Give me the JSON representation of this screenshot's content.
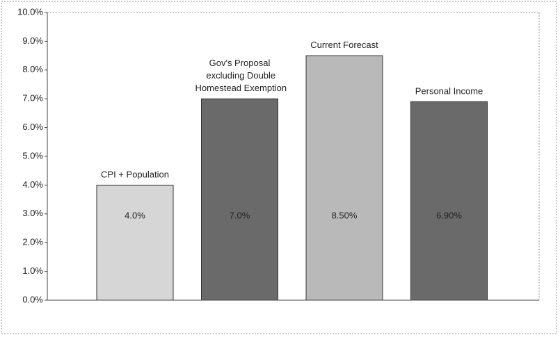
{
  "chart_data": {
    "type": "bar",
    "categories": [
      "CPI + Population",
      "Gov's Proposal excluding Double Homestead Exemption",
      "Current Forecast",
      "Personal Income"
    ],
    "values": [
      4.0,
      7.0,
      8.5,
      6.9
    ],
    "value_labels": [
      "4.0%",
      "7.0%",
      "8.50%",
      "6.90%"
    ],
    "colors": [
      "#d6d6d6",
      "#6a6a6a",
      "#b9b9b9",
      "#6a6a6a"
    ],
    "ylim": [
      0,
      10
    ],
    "yticks": [
      {
        "value": 0,
        "label": "0.0%"
      },
      {
        "value": 1,
        "label": "1.0%"
      },
      {
        "value": 2,
        "label": "2.0%"
      },
      {
        "value": 3,
        "label": "3.0%"
      },
      {
        "value": 4,
        "label": "4.0%"
      },
      {
        "value": 5,
        "label": "5.0%"
      },
      {
        "value": 6,
        "label": "6.0%"
      },
      {
        "value": 7,
        "label": "7.0%"
      },
      {
        "value": 8,
        "label": "8.0%"
      },
      {
        "value": 9,
        "label": "9.0%"
      },
      {
        "value": 10,
        "label": "10.0%"
      }
    ]
  }
}
